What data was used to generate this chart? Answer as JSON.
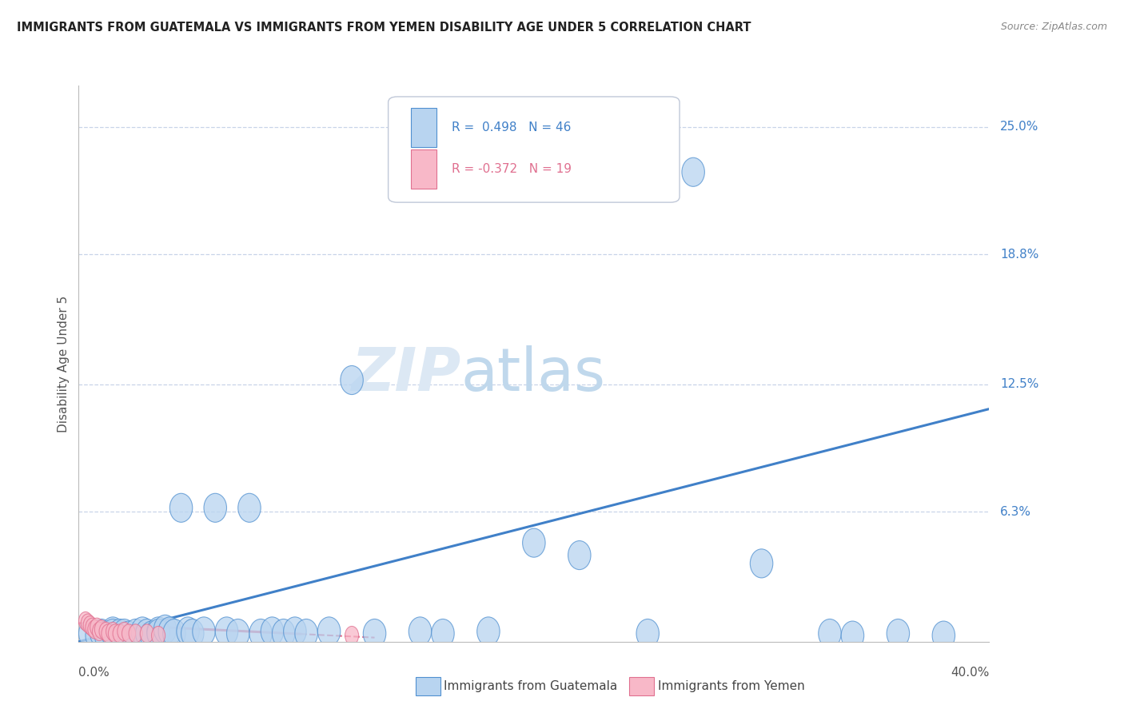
{
  "title": "IMMIGRANTS FROM GUATEMALA VS IMMIGRANTS FROM YEMEN DISABILITY AGE UNDER 5 CORRELATION CHART",
  "source": "Source: ZipAtlas.com",
  "ylabel": "Disability Age Under 5",
  "xlim": [
    0.0,
    0.4
  ],
  "ylim": [
    0.0,
    0.27
  ],
  "R_blue": 0.498,
  "N_blue": 46,
  "R_pink": -0.372,
  "N_pink": 19,
  "blue_fill": "#b8d4f0",
  "blue_edge": "#5090d0",
  "pink_fill": "#f8b8c8",
  "pink_edge": "#e07090",
  "blue_line": "#4080c8",
  "pink_line": "#e06888",
  "legend_blue": "Immigrants from Guatemala",
  "legend_pink": "Immigrants from Yemen",
  "watermark_zip": "ZIP",
  "watermark_atlas": "atlas",
  "bg": "#ffffff",
  "grid_color": "#c8d4e8",
  "ytick_vals": [
    0.063,
    0.125,
    0.188,
    0.25
  ],
  "ytick_labels": [
    "6.3%",
    "12.5%",
    "18.8%",
    "25.0%"
  ],
  "blue_x": [
    0.005,
    0.008,
    0.01,
    0.012,
    0.015,
    0.015,
    0.018,
    0.02,
    0.022,
    0.025,
    0.028,
    0.03,
    0.032,
    0.035,
    0.035,
    0.038,
    0.04,
    0.042,
    0.045,
    0.048,
    0.05,
    0.055,
    0.06,
    0.065,
    0.07,
    0.075,
    0.08,
    0.085,
    0.09,
    0.095,
    0.1,
    0.11,
    0.12,
    0.13,
    0.15,
    0.16,
    0.18,
    0.2,
    0.22,
    0.25,
    0.27,
    0.3,
    0.33,
    0.34,
    0.36,
    0.38
  ],
  "blue_y": [
    0.004,
    0.003,
    0.004,
    0.003,
    0.005,
    0.004,
    0.004,
    0.004,
    0.003,
    0.004,
    0.005,
    0.004,
    0.003,
    0.005,
    0.004,
    0.006,
    0.005,
    0.004,
    0.065,
    0.005,
    0.004,
    0.005,
    0.065,
    0.005,
    0.004,
    0.065,
    0.004,
    0.005,
    0.004,
    0.005,
    0.004,
    0.005,
    0.127,
    0.004,
    0.005,
    0.004,
    0.005,
    0.048,
    0.042,
    0.004,
    0.228,
    0.038,
    0.004,
    0.003,
    0.004,
    0.003
  ],
  "pink_x": [
    0.003,
    0.004,
    0.005,
    0.006,
    0.007,
    0.008,
    0.009,
    0.01,
    0.012,
    0.013,
    0.015,
    0.016,
    0.018,
    0.02,
    0.022,
    0.025,
    0.03,
    0.035,
    0.12
  ],
  "pink_y": [
    0.01,
    0.009,
    0.008,
    0.007,
    0.006,
    0.007,
    0.005,
    0.006,
    0.005,
    0.004,
    0.005,
    0.004,
    0.004,
    0.005,
    0.004,
    0.004,
    0.004,
    0.003,
    0.003
  ],
  "blue_line_x0": 0.0,
  "blue_line_y0": 0.0,
  "blue_line_x1": 0.4,
  "blue_line_y1": 0.113,
  "pink_line_x0": 0.0,
  "pink_line_y0": 0.009,
  "pink_line_x1": 0.13,
  "pink_line_y1": 0.002
}
